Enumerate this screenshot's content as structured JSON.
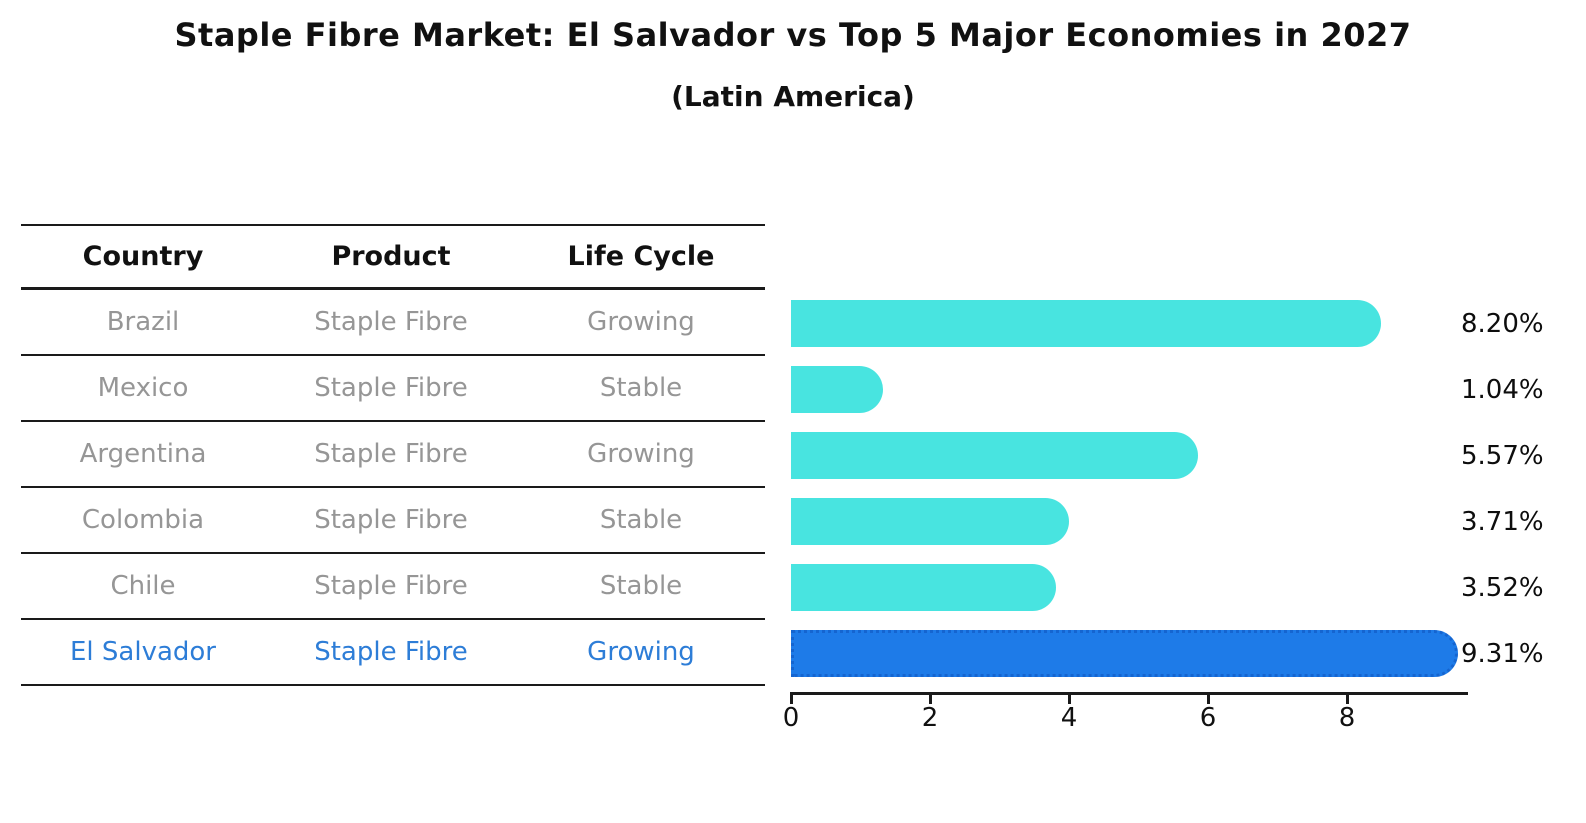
{
  "title": "Staple Fibre Market: El Salvador vs Top 5 Major Economies in 2027",
  "subtitle": "(Latin America)",
  "table": {
    "headers": [
      "Country",
      "Product",
      "Life Cycle"
    ],
    "rows": [
      {
        "country": "Brazil",
        "product": "Staple Fibre",
        "life_cycle": "Growing",
        "highlight": false
      },
      {
        "country": "Mexico",
        "product": "Staple Fibre",
        "life_cycle": "Stable",
        "highlight": false
      },
      {
        "country": "Argentina",
        "product": "Staple Fibre",
        "life_cycle": "Growing",
        "highlight": false
      },
      {
        "country": "Colombia",
        "product": "Staple Fibre",
        "life_cycle": "Stable",
        "highlight": false
      },
      {
        "country": "Chile",
        "product": "Staple Fibre",
        "life_cycle": "Stable",
        "highlight": false
      },
      {
        "country": "El Salvador",
        "product": "Staple Fibre",
        "life_cycle": "Growing",
        "highlight": true
      }
    ]
  },
  "chart_data": {
    "type": "bar",
    "orientation": "horizontal",
    "title": "Staple Fibre Market: El Salvador vs Top 5 Major Economies in 2027",
    "subtitle": "(Latin America)",
    "categories": [
      "Brazil",
      "Mexico",
      "Argentina",
      "Colombia",
      "Chile",
      "El Salvador"
    ],
    "values": [
      8.2,
      1.04,
      5.57,
      3.71,
      3.52,
      9.31
    ],
    "value_labels": [
      "8.20%",
      "1.04%",
      "5.57%",
      "3.71%",
      "3.52%",
      "9.31%"
    ],
    "xticks": [
      0,
      2,
      4,
      6,
      8
    ],
    "xlim": [
      0,
      9.7
    ],
    "xlabel": "",
    "ylabel": "",
    "grid": false,
    "legend": false,
    "bar_color": "#48E4E0",
    "highlight_index": 5,
    "highlight_bar_color": "#1E7BE8",
    "highlight_border_color": "#1565D0",
    "highlight_text_color": "#2D7DD7",
    "row_text_color": "#969696",
    "axis_color": "#1a1a1a"
  }
}
